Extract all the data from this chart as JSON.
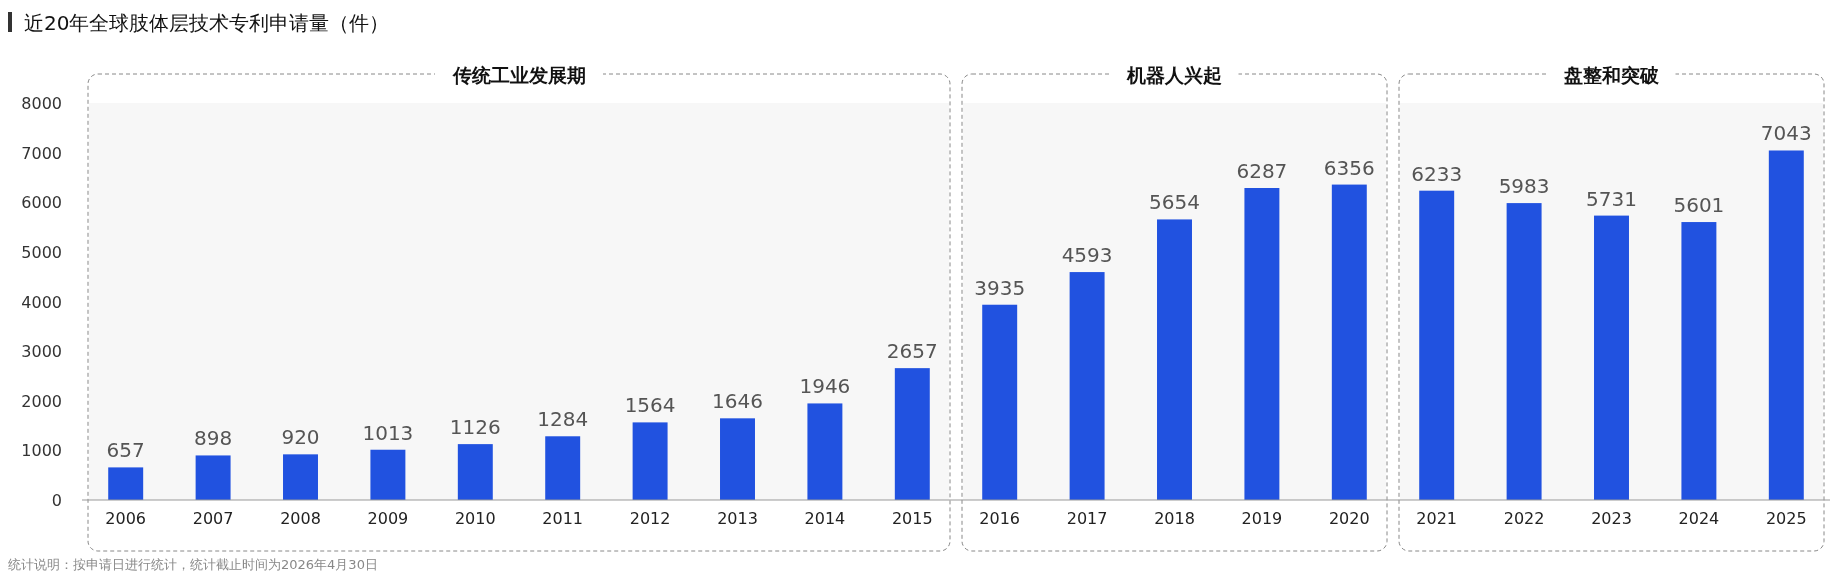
{
  "chart_data": {
    "type": "bar",
    "title": "近20年全球肢体层技术专利申请量（件）",
    "categories": [
      "2006",
      "2007",
      "2008",
      "2009",
      "2010",
      "2011",
      "2012",
      "2013",
      "2014",
      "2015",
      "2016",
      "2017",
      "2018",
      "2019",
      "2020",
      "2021",
      "2022",
      "2023",
      "2024",
      "2025"
    ],
    "values": [
      657,
      898,
      920,
      1013,
      1126,
      1284,
      1564,
      1646,
      1946,
      2657,
      3935,
      4593,
      5654,
      6287,
      6356,
      6233,
      5983,
      5731,
      5601,
      7043
    ],
    "color": "#2152e0",
    "ylim": [
      0,
      8000
    ],
    "yticks": [
      0,
      1000,
      2000,
      3000,
      4000,
      5000,
      6000,
      7000,
      8000
    ],
    "grid": false,
    "data_labels": true,
    "bands": [
      {
        "axis": "x",
        "from": "2006",
        "to": "2015",
        "label": "传统工业发展期"
      },
      {
        "axis": "x",
        "from": "2016",
        "to": "2020",
        "label": "机器人兴起"
      },
      {
        "axis": "x",
        "from": "2021",
        "to": "2025",
        "label": "盘整和突破"
      }
    ],
    "annotations": [
      "统计说明：按申请日进行统计，统计截止时间为2026年4月30日"
    ]
  }
}
